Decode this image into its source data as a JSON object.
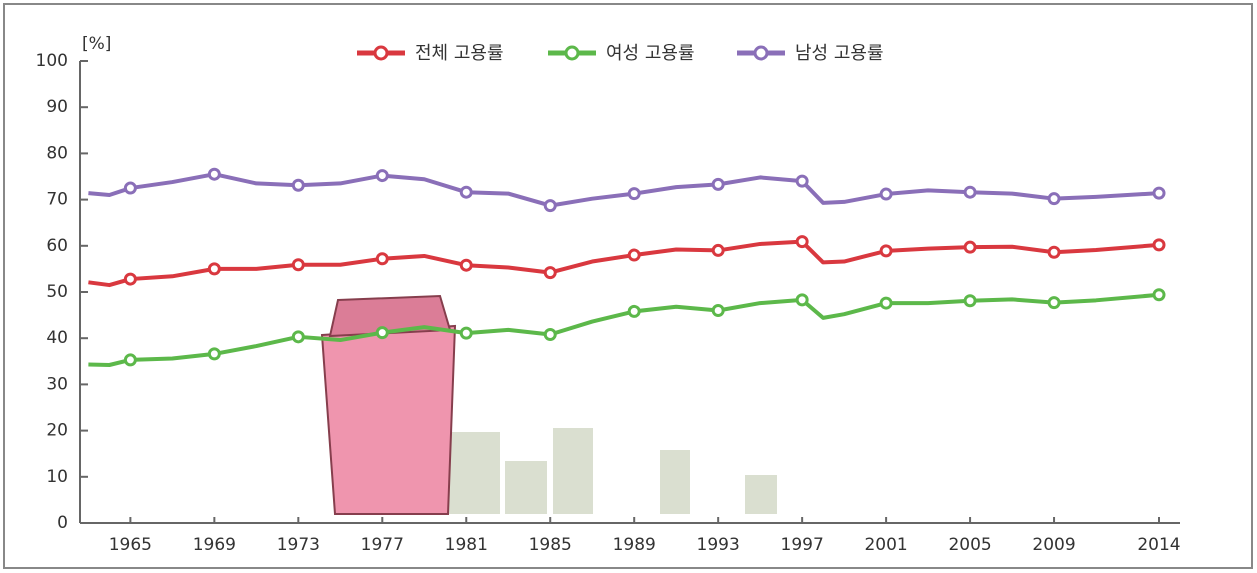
{
  "chart_data": {
    "type": "line",
    "y_label": "[%]",
    "x": [
      1963,
      1964,
      1965,
      1967,
      1969,
      1971,
      1973,
      1975,
      1977,
      1979,
      1981,
      1983,
      1985,
      1987,
      1989,
      1991,
      1993,
      1995,
      1997,
      1998,
      1999,
      2001,
      2003,
      2005,
      2007,
      2009,
      2011,
      2014
    ],
    "series": [
      {
        "name": "전체 고용률",
        "color": "#d9383f",
        "values": [
          52.1,
          51.5,
          52.8,
          53.4,
          55.0,
          55.0,
          55.9,
          55.9,
          57.2,
          57.8,
          55.8,
          55.3,
          54.2,
          56.6,
          58.0,
          59.2,
          59.0,
          60.4,
          60.9,
          56.4,
          56.6,
          58.9,
          59.4,
          59.7,
          59.8,
          58.6,
          59.1,
          60.2
        ]
      },
      {
        "name": "여성 고용률",
        "color": "#5cb84a",
        "values": [
          34.3,
          34.2,
          35.3,
          35.6,
          36.6,
          38.3,
          40.3,
          39.6,
          41.2,
          42.4,
          41.1,
          41.8,
          40.8,
          43.6,
          45.8,
          46.8,
          46.0,
          47.6,
          48.3,
          44.4,
          45.2,
          47.6,
          47.6,
          48.1,
          48.4,
          47.7,
          48.2,
          49.4
        ]
      },
      {
        "name": "남성 고용률",
        "color": "#8a6fb8",
        "values": [
          71.4,
          71.0,
          72.5,
          73.8,
          75.5,
          73.5,
          73.1,
          73.5,
          75.2,
          74.4,
          71.6,
          71.3,
          68.7,
          70.2,
          71.3,
          72.7,
          73.3,
          74.8,
          74.0,
          69.3,
          69.5,
          71.2,
          72.0,
          71.6,
          71.3,
          70.2,
          70.6,
          71.4
        ]
      }
    ],
    "xlim": [
      1962.6,
      2015
    ],
    "xticks": [
      1965,
      1969,
      1973,
      1977,
      1981,
      1985,
      1989,
      1993,
      1997,
      2001,
      2005,
      2009,
      2014
    ],
    "ylim": [
      0,
      100
    ],
    "yticks": [
      0,
      10,
      20,
      30,
      40,
      50,
      60,
      70,
      80,
      90,
      100
    ]
  }
}
